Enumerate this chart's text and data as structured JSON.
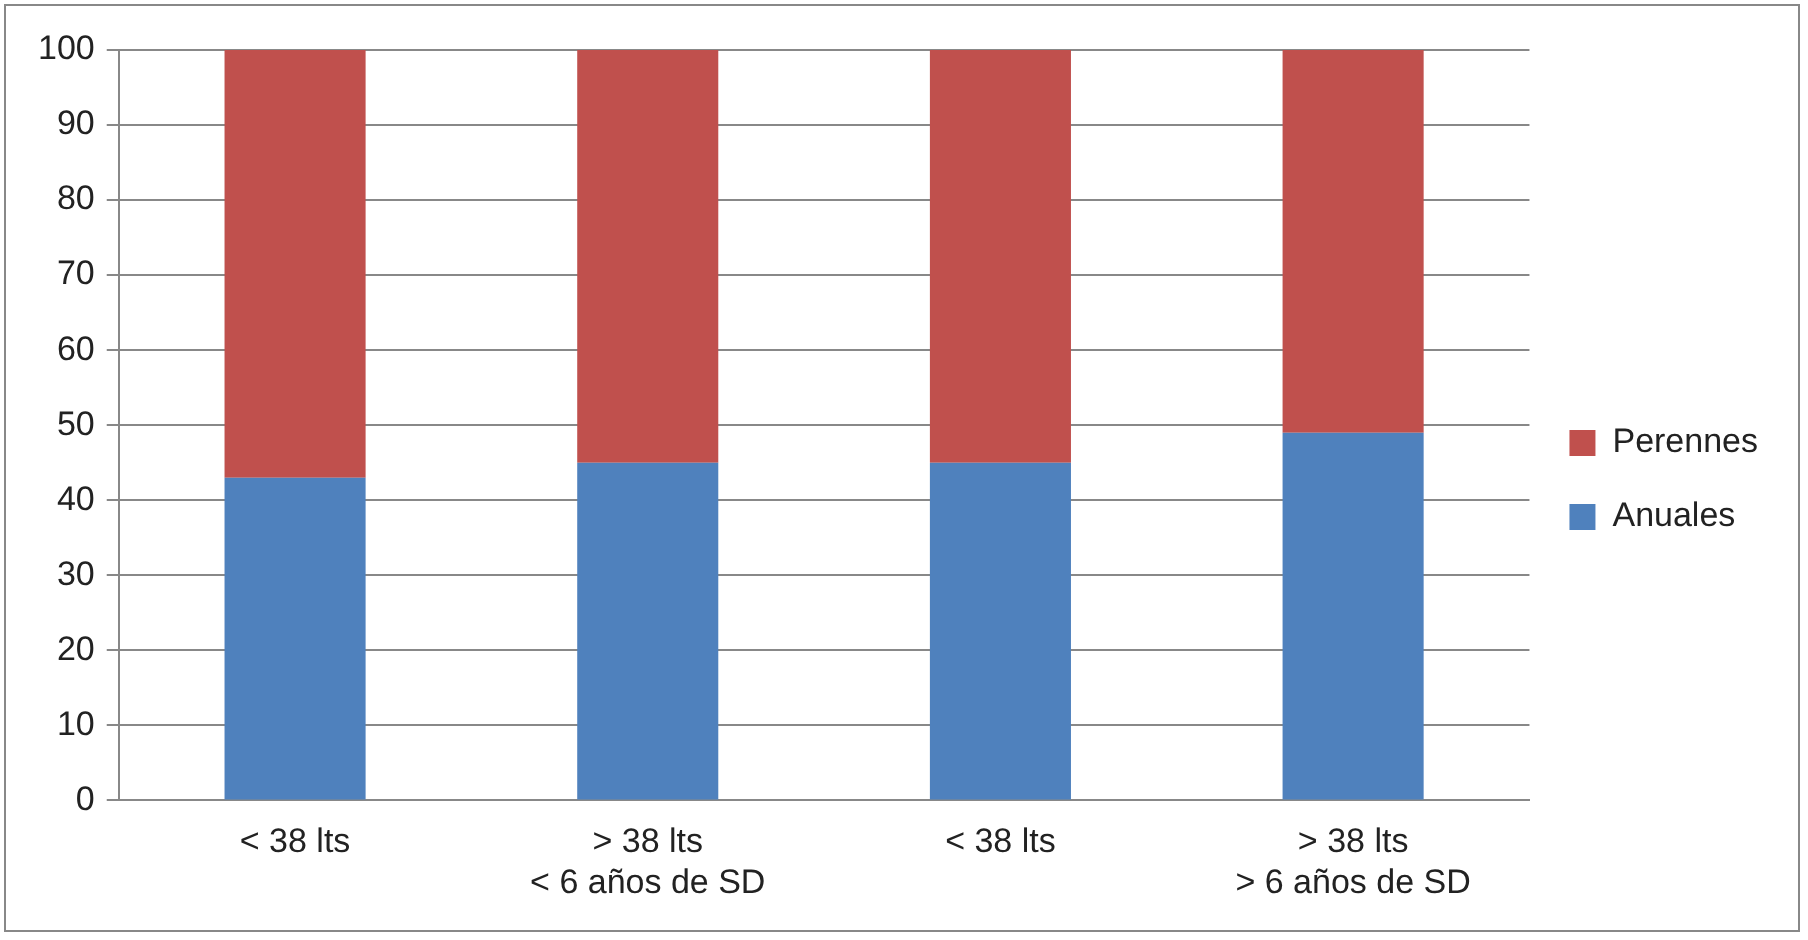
{
  "chart_data": {
    "type": "bar",
    "stacked": true,
    "categories": [
      "< 38 lts",
      "> 38 lts\n< 6 años de SD",
      "< 38 lts",
      "> 38 lts\n> 6 años de SD"
    ],
    "series": [
      {
        "name": "Anuales",
        "color": "#4f81bd",
        "values": [
          43,
          45,
          45,
          49
        ]
      },
      {
        "name": "Perennes",
        "color": "#c0504d",
        "values": [
          57,
          55,
          55,
          51
        ]
      }
    ],
    "ylim": [
      0,
      100
    ],
    "yticks": [
      0,
      10,
      20,
      30,
      40,
      50,
      60,
      70,
      80,
      90,
      100
    ],
    "grid": "y",
    "legend": "right"
  }
}
